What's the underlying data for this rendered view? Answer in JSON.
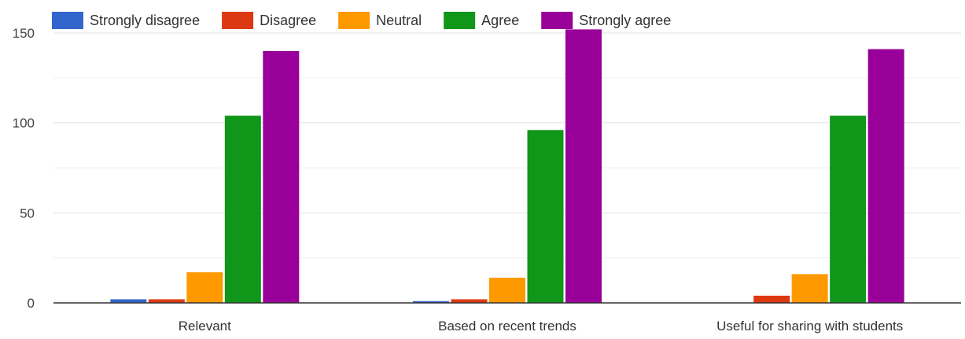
{
  "chart_data": {
    "type": "bar",
    "categories": [
      "Relevant",
      "Based on recent trends",
      "Useful for sharing with students"
    ],
    "series": [
      {
        "name": "Strongly disagree",
        "color": "#3366cc",
        "values": [
          2,
          1,
          0
        ]
      },
      {
        "name": "Disagree",
        "color": "#dc3912",
        "values": [
          2,
          2,
          4
        ]
      },
      {
        "name": "Neutral",
        "color": "#ff9900",
        "values": [
          17,
          14,
          16
        ]
      },
      {
        "name": "Agree",
        "color": "#109618",
        "values": [
          104,
          96,
          104
        ]
      },
      {
        "name": "Strongly agree",
        "color": "#990099",
        "values": [
          140,
          152,
          141
        ]
      }
    ],
    "yticks": [
      0,
      50,
      100,
      150
    ],
    "ylim": [
      0,
      150
    ],
    "grid": true,
    "legend_position": "top-left"
  }
}
